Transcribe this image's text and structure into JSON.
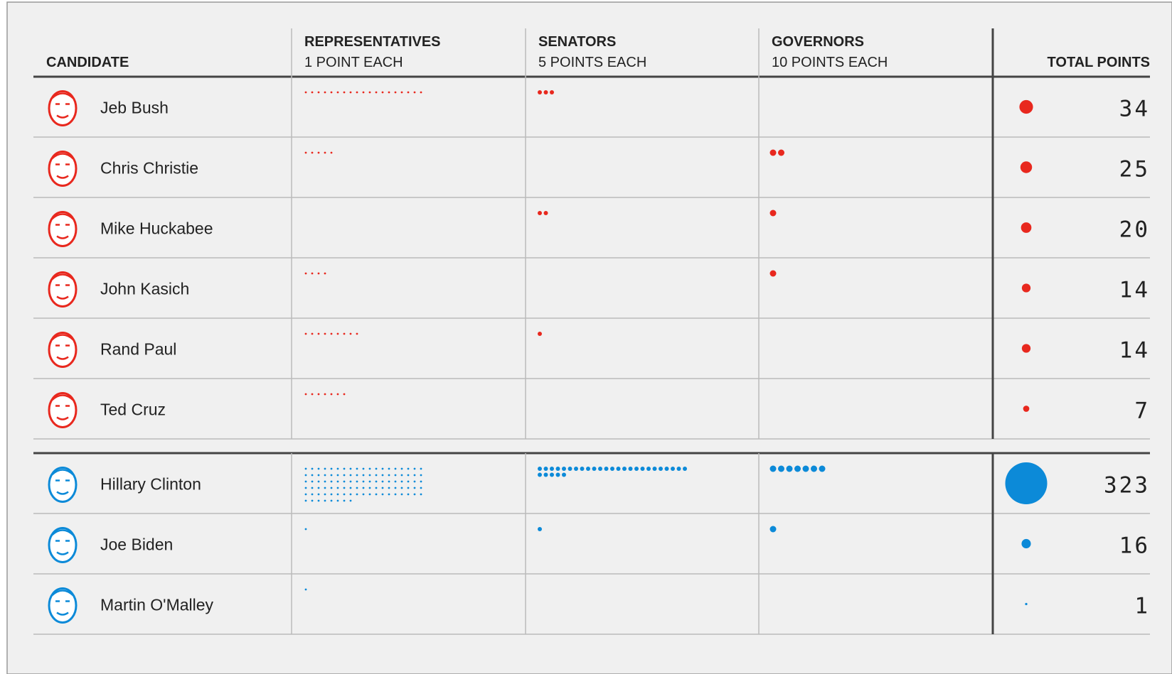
{
  "chart_data": {
    "type": "table",
    "columns": [
      {
        "title": "CANDIDATE"
      },
      {
        "title": "REPRESENTATIVES",
        "subtitle": "1 POINT EACH"
      },
      {
        "title": "SENATORS",
        "subtitle": "5 POINTS EACH"
      },
      {
        "title": "GOVERNORS",
        "subtitle": "10 POINTS EACH"
      },
      {
        "title": "TOTAL POINTS"
      }
    ],
    "groups": [
      {
        "color": "#e8281e",
        "candidates": [
          {
            "name": "Jeb Bush",
            "representatives": 19,
            "senators": 3,
            "governors": 0,
            "total": 34
          },
          {
            "name": "Chris Christie",
            "representatives": 5,
            "senators": 0,
            "governors": 2,
            "total": 25
          },
          {
            "name": "Mike Huckabee",
            "representatives": 0,
            "senators": 2,
            "governors": 1,
            "total": 20
          },
          {
            "name": "John Kasich",
            "representatives": 4,
            "senators": 0,
            "governors": 1,
            "total": 14
          },
          {
            "name": "Rand Paul",
            "representatives": 9,
            "senators": 1,
            "governors": 0,
            "total": 14
          },
          {
            "name": "Ted Cruz",
            "representatives": 7,
            "senators": 0,
            "governors": 0,
            "total": 7
          }
        ]
      },
      {
        "color": "#0c8ad8",
        "candidates": [
          {
            "name": "Hillary Clinton",
            "representatives": 103,
            "senators": 30,
            "governors": 7,
            "total": 323
          },
          {
            "name": "Joe Biden",
            "representatives": 1,
            "senators": 1,
            "governors": 1,
            "total": 16
          },
          {
            "name": "Martin O'Malley",
            "representatives": 1,
            "senators": 0,
            "governors": 0,
            "total": 1
          }
        ]
      }
    ]
  }
}
